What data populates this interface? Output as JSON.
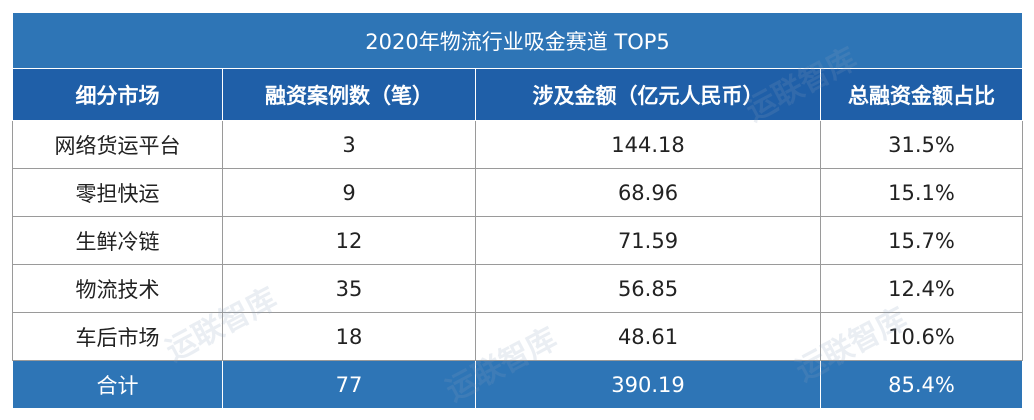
{
  "table": {
    "title": "2020年物流行业吸金赛道 TOP5",
    "header": [
      "细分市场",
      "融资案例数（笔）",
      "涉及金额（亿元人民币）",
      "总融资金额占比"
    ],
    "rows": [
      [
        "网络货运平台",
        "3",
        "144.18",
        "31.5%"
      ],
      [
        "零担快运",
        "9",
        "68.96",
        "15.1%"
      ],
      [
        "生鲜冷链",
        "12",
        "71.59",
        "15.7%"
      ],
      [
        "物流技术",
        "35",
        "56.85",
        "12.4%"
      ],
      [
        "车后市场",
        "18",
        "48.61",
        "10.6%"
      ]
    ],
    "total": [
      "合计",
      "77",
      "390.19",
      "85.4%"
    ],
    "watermark": "运联智库"
  }
}
